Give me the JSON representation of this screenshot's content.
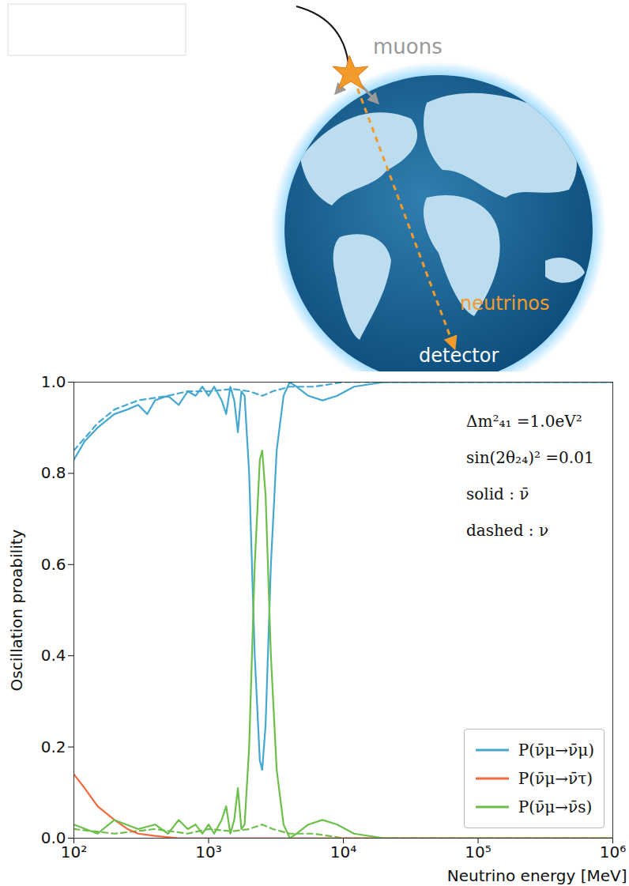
{
  "diagram": {
    "labels": {
      "muons": "muons",
      "neutrinos": "neutrinos",
      "detector": "detector"
    }
  },
  "chart_data": {
    "type": "line",
    "x_label": "Neutrino energy [MeV]",
    "y_label": "Oscillation proability",
    "log": "x",
    "xlim": [
      100,
      1000000
    ],
    "xticks": [
      {
        "value": 100,
        "label": "10²"
      },
      {
        "value": 1000,
        "label": "10³"
      },
      {
        "value": 10000,
        "label": "10⁴"
      },
      {
        "value": 100000,
        "label": "10⁵"
      },
      {
        "value": 1000000,
        "label": "10⁶"
      }
    ],
    "ylim": [
      0,
      1
    ],
    "yticks": [
      {
        "value": 0,
        "label": "0.0"
      },
      0.2,
      0.4,
      0.6,
      0.8,
      {
        "value": 1,
        "label": "1.0"
      }
    ],
    "grid": false,
    "legend": "lower right",
    "annotations": [
      "Δm²₄₁ =1.0eV²",
      "sin(2θ₂₄)² =0.01",
      "solid : ν̄",
      "dashed : ν"
    ],
    "series": [
      {
        "name": "P(ν̄μ→ν̄μ)",
        "color": "#44a8d0",
        "line_style": "dashed",
        "x": [
          100,
          150,
          200,
          300,
          500,
          700,
          1000,
          1500,
          2000,
          2500,
          3000,
          4000,
          6000,
          10000,
          1000000
        ],
        "values": [
          0.85,
          0.91,
          0.94,
          0.96,
          0.97,
          0.98,
          0.98,
          0.985,
          0.98,
          0.97,
          0.98,
          0.99,
          0.99,
          1.0,
          1.0
        ]
      },
      {
        "name": "P(ν̄μ→ν̄s)",
        "color": "#6cbf4a",
        "line_style": "dashed",
        "x": [
          100,
          200,
          400,
          700,
          1000,
          1500,
          2000,
          2500,
          3000,
          4000,
          6000,
          10000,
          1000000
        ],
        "values": [
          0.02,
          0.01,
          0.02,
          0.01,
          0.02,
          0.015,
          0.02,
          0.03,
          0.02,
          0.01,
          0.01,
          0.0,
          0.0
        ]
      },
      {
        "name": "P(ν̄μ→ν̄μ)",
        "color": "#44a8d0",
        "line_style": "solid",
        "x": [
          100,
          120,
          150,
          200,
          250,
          300,
          350,
          400,
          500,
          600,
          700,
          800,
          900,
          1000,
          1100,
          1250,
          1350,
          1450,
          1550,
          1650,
          1750,
          1850,
          2000,
          2200,
          2400,
          2500,
          2650,
          2900,
          3200,
          3600,
          4000,
          4500,
          5500,
          7000,
          9000,
          12000,
          20000,
          100000,
          1000000
        ],
        "values": [
          0.83,
          0.87,
          0.9,
          0.93,
          0.94,
          0.95,
          0.93,
          0.96,
          0.97,
          0.95,
          0.98,
          0.97,
          0.99,
          0.97,
          0.99,
          0.96,
          0.93,
          0.99,
          0.96,
          0.89,
          0.98,
          0.97,
          0.8,
          0.4,
          0.17,
          0.15,
          0.25,
          0.6,
          0.85,
          0.97,
          1.0,
          0.99,
          0.97,
          0.96,
          0.97,
          0.99,
          1.0,
          1.0,
          1.0
        ]
      },
      {
        "name": "P(ν̄μ→ν̄τ)",
        "color": "#f4683c",
        "line_style": "solid",
        "x": [
          100,
          120,
          150,
          200,
          250,
          300,
          400,
          600,
          1000000
        ],
        "values": [
          0.14,
          0.11,
          0.07,
          0.04,
          0.02,
          0.01,
          0.005,
          0.0,
          0.0
        ]
      },
      {
        "name": "P(ν̄μ→ν̄s)",
        "color": "#6cbf4a",
        "line_style": "solid",
        "x": [
          100,
          150,
          200,
          300,
          400,
          500,
          600,
          700,
          800,
          900,
          1000,
          1100,
          1250,
          1350,
          1450,
          1550,
          1650,
          1750,
          1850,
          2000,
          2200,
          2400,
          2500,
          2650,
          2900,
          3200,
          3600,
          4000,
          4500,
          5500,
          7000,
          9000,
          12000,
          20000,
          100000,
          1000000
        ],
        "values": [
          0.03,
          0.01,
          0.04,
          0.02,
          0.03,
          0.01,
          0.04,
          0.02,
          0.03,
          0.01,
          0.03,
          0.01,
          0.04,
          0.07,
          0.01,
          0.04,
          0.11,
          0.02,
          0.03,
          0.2,
          0.6,
          0.83,
          0.85,
          0.75,
          0.4,
          0.15,
          0.03,
          0.0,
          0.01,
          0.03,
          0.04,
          0.03,
          0.01,
          0.0,
          0.0,
          0.0
        ]
      }
    ]
  }
}
